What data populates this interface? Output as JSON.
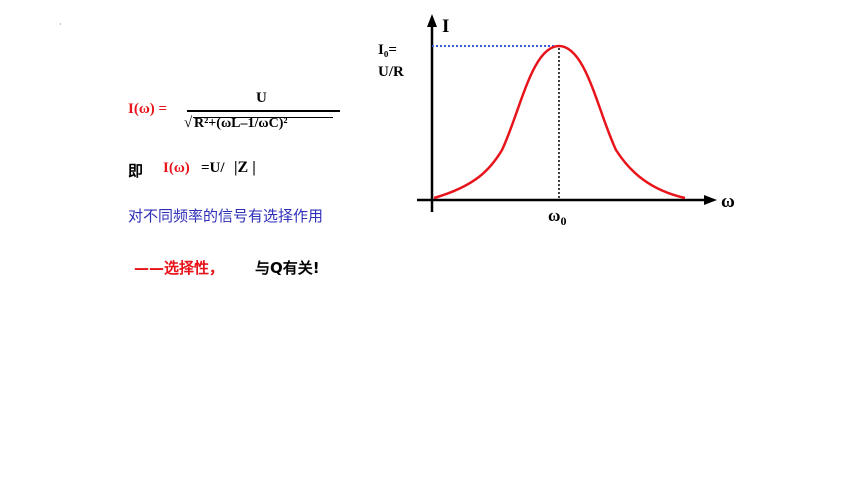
{
  "corner_mark": "·",
  "formula": {
    "lhs": "I(ω) =",
    "numerator": "U",
    "radical": "√",
    "denominator": "R²+(ωL–1/ωC)²"
  },
  "equivalent": {
    "prefix": "即",
    "lhs": "I(ω)",
    "rhs": "=U/",
    "z": "|Z |"
  },
  "selectivity_text": "对不同频率的信号有选择作用",
  "note": {
    "dash_label": "——选择性，",
    "q_text": "与Q有关!"
  },
  "graph": {
    "y_axis_label": "I",
    "x_axis_label": "ω",
    "peak_label_line1": "I₀=",
    "peak_label_line2": "U/R",
    "peak_x_label": "ω",
    "peak_x_subscript": "0",
    "curve_color": "#e8141b",
    "guide_color_horizontal": "#3b5fd9",
    "guide_color_vertical": "#000000"
  }
}
